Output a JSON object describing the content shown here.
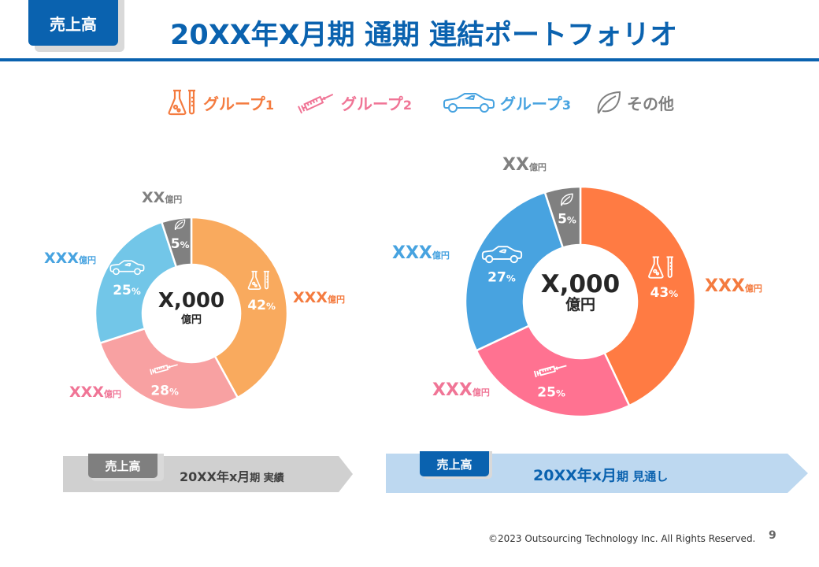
{
  "header": {
    "tag_label": "売上高",
    "title": "20XX年X月期 通期 連結ポートフォリオ"
  },
  "legend": [
    {
      "name": "グループ",
      "num": "1",
      "icon": "flask-testtube-icon",
      "color": "#f47b3f"
    },
    {
      "name": "グループ",
      "num": "2",
      "icon": "syringe-icon",
      "color": "#f07596"
    },
    {
      "name": "グループ",
      "num": "3",
      "icon": "car-icon",
      "color": "#47a3e0"
    },
    {
      "name": "その他",
      "num": "",
      "icon": "leaf-icon",
      "color": "#808080"
    }
  ],
  "chart_data": [
    {
      "type": "pie",
      "variant": "donut",
      "title": "20XX年x月期 実績",
      "center_label": {
        "value": "X,000",
        "unit": "億円"
      },
      "categories": [
        "グループ1",
        "グループ2",
        "グループ3",
        "その他"
      ],
      "values": [
        42,
        28,
        25,
        5
      ],
      "value_labels": [
        "42",
        "28",
        "25",
        "5"
      ],
      "percent_suffix": "%",
      "amounts": [
        {
          "value": "XXX",
          "unit": "億円"
        },
        {
          "value": "XXX",
          "unit": "億円"
        },
        {
          "value": "XXX",
          "unit": "億円"
        },
        {
          "value": "XX",
          "unit": "億円"
        }
      ],
      "colors": [
        "#f9aa5e",
        "#f8a1a2",
        "#72c6e8",
        "#808080"
      ],
      "label_colors": [
        "#f47b3f",
        "#f07596",
        "#47a3e0",
        "#808080"
      ],
      "start": "12 o'clock",
      "direction": "clockwise"
    },
    {
      "type": "pie",
      "variant": "donut",
      "title": "20XX年x月期 見通し",
      "center_label": {
        "value": "X,000",
        "unit": "億円"
      },
      "categories": [
        "グループ1",
        "グループ2",
        "グループ3",
        "その他"
      ],
      "values": [
        43,
        25,
        27,
        5
      ],
      "value_labels": [
        "43",
        "25",
        "27",
        "5"
      ],
      "percent_suffix": "%",
      "amounts": [
        {
          "value": "XXX",
          "unit": "億円"
        },
        {
          "value": "XXX",
          "unit": "億円"
        },
        {
          "value": "XXX",
          "unit": "億円"
        },
        {
          "value": "XX",
          "unit": "億円"
        }
      ],
      "colors": [
        "#ff7b43",
        "#ff7291",
        "#48a3e0",
        "#808080"
      ],
      "label_colors": [
        "#f47b3f",
        "#f07596",
        "#47a3e0",
        "#808080"
      ],
      "start": "12 o'clock",
      "direction": "clockwise"
    }
  ],
  "banners": [
    {
      "tag": "売上高",
      "main": "20XX年x月",
      "suffix": "期 実績",
      "bg": "#d0d0d0",
      "tag_bg": "#7f7f7f",
      "text_color": "#404040"
    },
    {
      "tag": "売上高",
      "main": "20XX年x月",
      "suffix": "期 見通し",
      "bg": "#bdd8f0",
      "tag_bg": "#0a62af",
      "text_color": "#0a62af"
    }
  ],
  "footer": {
    "copyright": "©2023 Outsourcing Technology Inc. All Rights Reserved.",
    "page_number": "9"
  }
}
